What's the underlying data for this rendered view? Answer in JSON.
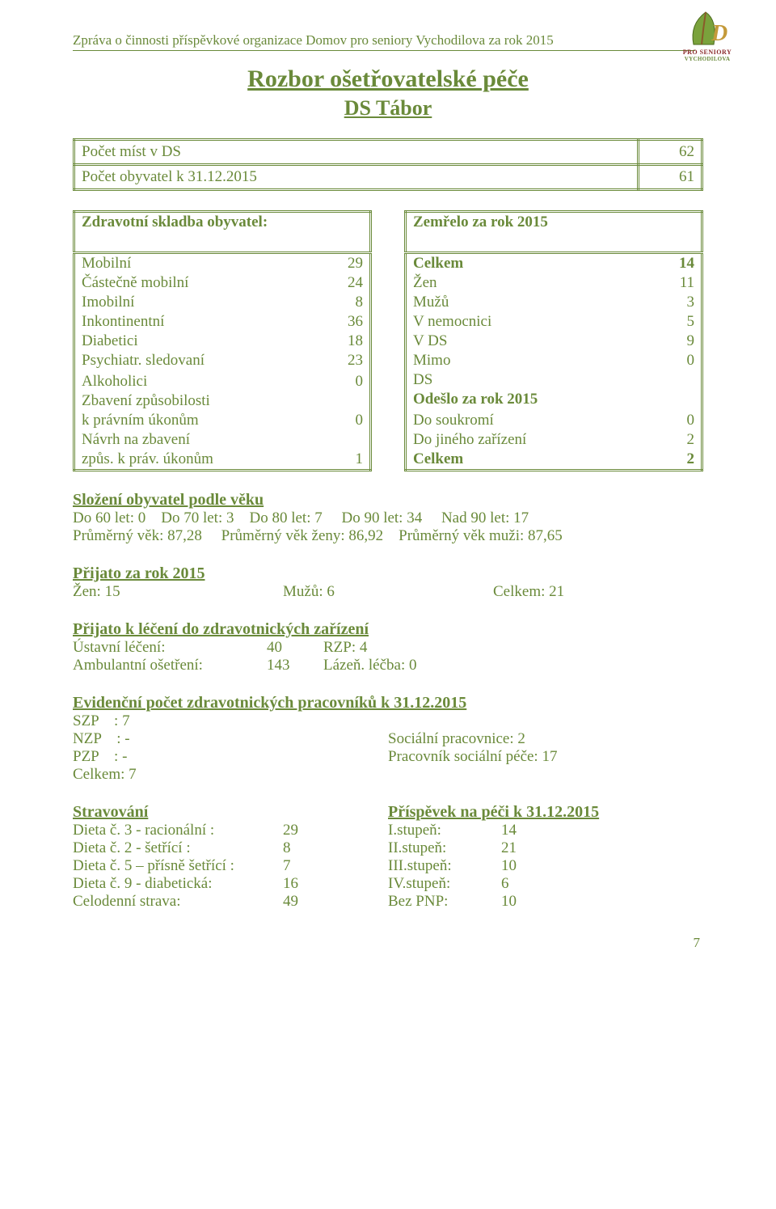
{
  "header": "Zpráva o činnosti příspěvkové organizace Domov pro seniory Vychodilova za rok 2015",
  "logo": {
    "line1": "PRO SENIORY",
    "line2": "VYCHODILOVA"
  },
  "title": "Rozbor ošetřovatelské péče",
  "subtitle": "DS Tábor",
  "top_table": {
    "rows": [
      {
        "label": "Počet míst v DS",
        "value": "62"
      },
      {
        "label": "Počet obyvatel k 31.12.2015",
        "value": "61"
      }
    ]
  },
  "left_box": {
    "header": "Zdravotní skladba obyvatel:",
    "rows": [
      {
        "label": "Mobilní",
        "value": "29"
      },
      {
        "label": "Částečně mobilní",
        "value": "24"
      },
      {
        "label": "Imobilní",
        "value": "8"
      },
      {
        "label": "Inkontinentní",
        "value": "36"
      },
      {
        "label": "Diabetici",
        "value": "18"
      },
      {
        "label": "Psychiatr. sledovaní",
        "value": "23"
      },
      {
        "label": "",
        "value": ""
      },
      {
        "label": "Alkoholici",
        "value": "0"
      },
      {
        "label": "Zbavení způsobilosti",
        "value": ""
      },
      {
        "label": "k právním úkonům",
        "value": "0"
      },
      {
        "label": "Návrh na zbavení",
        "value": ""
      },
      {
        "label": "způs. k práv. úkonům",
        "value": "1"
      }
    ]
  },
  "right_box": {
    "header": "Zemřelo za rok 2015",
    "rows": [
      {
        "label": "Celkem",
        "value": "14",
        "bold": true
      },
      {
        "label": "Žen",
        "value": "11"
      },
      {
        "label": "Mužů",
        "value": "3"
      },
      {
        "label": "V nemocnici",
        "value": "5"
      },
      {
        "label": "V DS",
        "value": "9"
      },
      {
        "label": "Mimo",
        "value": "0"
      },
      {
        "label": "DS",
        "value": ""
      },
      {
        "label": "Odešlo za rok 2015",
        "value": "",
        "bold": true
      },
      {
        "label": "",
        "value": ""
      },
      {
        "label": "Do soukromí",
        "value": "0"
      },
      {
        "label": "Do jiného zařízení",
        "value": "2"
      },
      {
        "label": "Celkem",
        "value": "2",
        "bold": true
      }
    ]
  },
  "age": {
    "heading": "Složení obyvatel podle věku",
    "line1": "Do 60 let: 0    Do 70 let: 3    Do 80 let: 7     Do 90 let: 34     Nad 90 let: 17",
    "line2": "Průměrný věk: 87,28     Průměrný věk ženy: 86,92    Průměrný věk muži: 87,65"
  },
  "admitted": {
    "heading": "Přijato za rok 2015",
    "zen": "Žen: 15",
    "muzu": "Mužů: 6",
    "celkem": "Celkem: 21"
  },
  "treatment": {
    "heading": "Přijato k léčení do zdravotnických zařízení",
    "r1a": "Ústavní léčení:",
    "r1b": "40",
    "r1c": "RZP: 4",
    "r2a": "Ambulantní ošetření:",
    "r2b": "143",
    "r2c": "Lázeň. léčba: 0"
  },
  "staff": {
    "heading": "Evidenční počet zdravotnických pracovníků k 31.12.2015",
    "szp": "SZP    : 7",
    "nzp": "NZP    : -",
    "nzp_r": "Sociální pracovnice: 2",
    "pzp": "PZP    : -",
    "pzp_r": "Pracovník sociální péče: 17",
    "celkem": "Celkem: 7"
  },
  "food": {
    "heading_l": "Stravování",
    "heading_r": "Příspěvek na péči k 31.12.2015",
    "rows": [
      {
        "l1": "Dieta č. 3 - racionální :",
        "l2": "29",
        "r1": "I.stupeň:",
        "r2": "14"
      },
      {
        "l1": "Dieta č. 2 - šetřící :",
        "l2": "8",
        "r1": "II.stupeň:",
        "r2": "21"
      },
      {
        "l1": "Dieta č. 5 – přísně šetřící :",
        "l2": "7",
        "r1": "III.stupeň:",
        "r2": "10"
      },
      {
        "l1": "Dieta č. 9 - diabetická:",
        "l2": "16",
        "r1": "IV.stupeň:",
        "r2": "6"
      },
      {
        "l1": "Celodenní strava:",
        "l2": "49",
        "r1": "Bez PNP:",
        "r2": "10"
      }
    ]
  },
  "page_number": "7"
}
